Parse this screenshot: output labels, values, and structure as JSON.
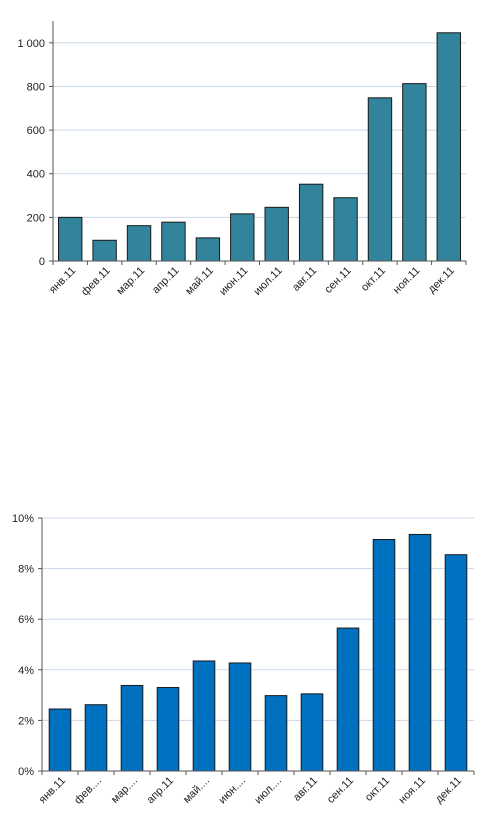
{
  "chart_data": [
    {
      "type": "bar",
      "categories": [
        "янв.11",
        "фев.11",
        "мар.11",
        "апр.11",
        "май.11",
        "июн.11",
        "июл.11",
        "авг.11",
        "сен.11",
        "окт.11",
        "ноя.11",
        "дек.11"
      ],
      "values": [
        200,
        95,
        162,
        178,
        106,
        216,
        246,
        352,
        290,
        748,
        813,
        1046
      ],
      "ylim": [
        0,
        1100
      ],
      "yticks": [
        0,
        200,
        400,
        600,
        800,
        1000
      ],
      "ytick_labels": [
        "0",
        "200",
        "400",
        "600",
        "800",
        "1 000"
      ],
      "grid": true,
      "bar_color": "#31849b",
      "title": "",
      "xlabel": "",
      "ylabel": ""
    },
    {
      "type": "bar",
      "categories": [
        "янв.11",
        "фев....",
        "мар....",
        "апр.11",
        "май....",
        "июн....",
        "июл....",
        "авг.11",
        "сен.11",
        "окт.11",
        "ноя.11",
        "дек.11"
      ],
      "values": [
        2.45,
        2.62,
        3.38,
        3.3,
        4.35,
        4.27,
        2.98,
        3.05,
        5.65,
        9.15,
        9.35,
        8.55
      ],
      "unit": "%",
      "ylim": [
        0,
        10
      ],
      "yticks": [
        0,
        2,
        4,
        6,
        8,
        10
      ],
      "ytick_labels": [
        "0%",
        "2%",
        "4%",
        "6%",
        "8%",
        "10%"
      ],
      "grid": true,
      "bar_color": "#0070c0",
      "title": "",
      "xlabel": "",
      "ylabel": ""
    }
  ]
}
